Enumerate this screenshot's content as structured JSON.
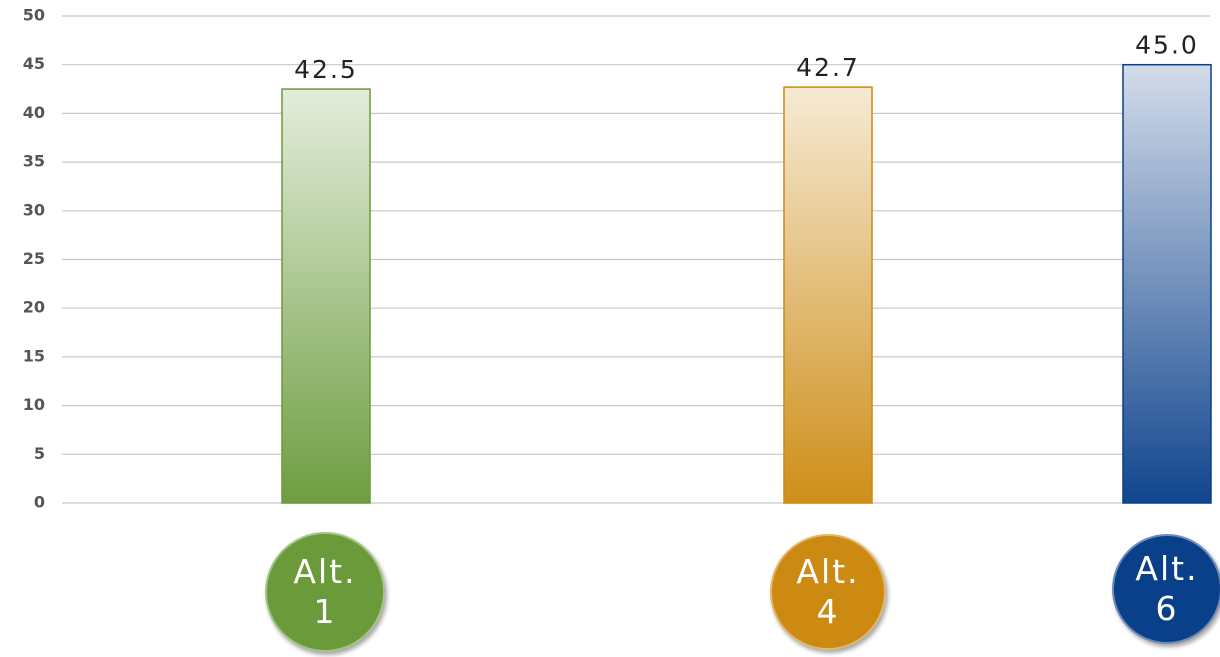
{
  "chart_data": {
    "type": "bar",
    "categories": [
      "Alt. 1",
      "Alt. 4",
      "Alt. 6"
    ],
    "values": [
      42.5,
      42.7,
      45.0
    ],
    "value_labels": [
      "42.5",
      "42.7",
      "45.0"
    ],
    "colors": [
      "#6a9a3a",
      "#cc8a12",
      "#0a3f8a"
    ],
    "ylim": [
      0,
      50
    ],
    "yticks": [
      0,
      5,
      10,
      15,
      20,
      25,
      30,
      35,
      40,
      45,
      50
    ],
    "grid": true
  }
}
